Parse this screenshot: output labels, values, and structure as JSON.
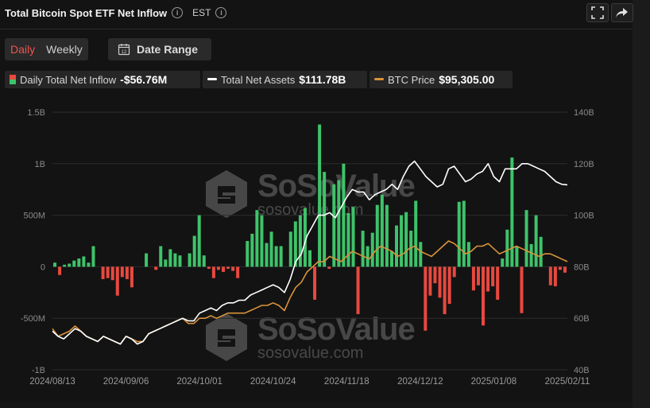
{
  "header": {
    "title": "Total Bitcoin Spot ETF Net Inflow",
    "timezone": "EST"
  },
  "toolbar": {
    "tab_daily": "Daily",
    "tab_weekly": "Weekly",
    "date_range_label": "Date Range",
    "calendar_day": "12"
  },
  "legend": {
    "inflow_label": "Daily Total Net Inflow",
    "inflow_value": "-$56.76M",
    "assets_label": "Total Net Assets",
    "assets_value": "$111.78B",
    "btc_label": "BTC Price",
    "btc_value": "$95,305.00"
  },
  "watermark": {
    "brand": "SoSoValue",
    "url": "sosovalue.com"
  },
  "colors": {
    "positive_bar": "#3ec36a",
    "negative_bar": "#e8493f",
    "net_assets_line": "#ffffff",
    "btc_price_line": "#d9933a",
    "active_tab": "#ef5350"
  },
  "chart_data": {
    "type": "bar",
    "left_axis": {
      "ticks": [
        "1.5B",
        "1B",
        "500M",
        "0",
        "-500M",
        "-1B"
      ],
      "range": [
        -1000,
        1500
      ],
      "unit": "M USD"
    },
    "right_axis": {
      "ticks": [
        "140B",
        "120B",
        "100B",
        "80B",
        "60B",
        "40B"
      ],
      "range": [
        40,
        140
      ],
      "unit": "B USD"
    },
    "x_tick_labels": [
      "2024/08/13",
      "2024/09/06",
      "2024/10/01",
      "2024/10/24",
      "2024/11/18",
      "2024/12/12",
      "2025/01/08",
      "2025/02/11"
    ],
    "series": [
      {
        "name": "Daily Total Net Inflow",
        "kind": "bar",
        "axis": "left",
        "values": [
          40,
          -80,
          20,
          30,
          60,
          80,
          100,
          40,
          200,
          0,
          -120,
          -110,
          -130,
          -280,
          -100,
          -120,
          -200,
          0,
          0,
          130,
          0,
          -30,
          200,
          70,
          170,
          130,
          110,
          0,
          130,
          300,
          500,
          110,
          -20,
          -110,
          -30,
          -50,
          -20,
          -40,
          -110,
          0,
          250,
          320,
          550,
          500,
          230,
          340,
          200,
          200,
          0,
          340,
          440,
          500,
          570,
          160,
          -320,
          1380,
          920,
          -20,
          800,
          840,
          1000,
          520,
          580,
          -460,
          350,
          200,
          330,
          600,
          700,
          600,
          150,
          400,
          500,
          530,
          350,
          640,
          240,
          -620,
          -280,
          -160,
          -300,
          -460,
          -360,
          -100,
          630,
          640,
          240,
          -230,
          -180,
          -570,
          -240,
          -190,
          -320,
          80,
          360,
          1060,
          200,
          -450,
          550,
          220,
          500,
          290,
          0,
          -180,
          -190,
          -30,
          -57
        ]
      },
      {
        "name": "Total Net Assets",
        "kind": "line",
        "axis": "right",
        "values": [
          55,
          53,
          52,
          54,
          56,
          55,
          53,
          52,
          51,
          53,
          52,
          51,
          50,
          53,
          52,
          50,
          51,
          54,
          55,
          56,
          57,
          58,
          59,
          60,
          59,
          59,
          62,
          63,
          64,
          63,
          65,
          66,
          66,
          67,
          67,
          69,
          70,
          71,
          72,
          73,
          72,
          70,
          75,
          82,
          85,
          92,
          96,
          100,
          100,
          101,
          99,
          103,
          107,
          110,
          109,
          109,
          106,
          108,
          109,
          110,
          112,
          110,
          115,
          119,
          121,
          118,
          115,
          113,
          111,
          112,
          118,
          119,
          116,
          113,
          114,
          116,
          117,
          120,
          115,
          113,
          118,
          118,
          118,
          120,
          120,
          119,
          118,
          117,
          115,
          113,
          112,
          111.78
        ]
      },
      {
        "name": "BTC Price",
        "kind": "line",
        "axis": "right",
        "values": [
          56,
          53,
          54,
          55,
          57,
          55,
          53,
          52,
          51,
          53,
          52,
          51,
          50,
          53,
          52,
          51,
          51,
          54,
          55,
          56,
          57,
          58,
          59,
          60,
          58,
          58,
          60,
          60,
          61,
          60,
          61,
          62,
          62,
          62,
          62,
          63,
          64,
          65,
          65,
          66,
          65,
          63,
          68,
          72,
          74,
          78,
          80,
          82,
          82,
          84,
          83,
          82,
          84,
          86,
          85,
          84,
          83,
          86,
          88,
          87,
          86,
          84,
          85,
          87,
          88,
          86,
          85,
          84,
          86,
          88,
          90,
          89,
          87,
          85,
          86,
          88,
          88,
          89,
          87,
          85,
          86,
          87,
          88,
          87,
          86,
          85,
          84,
          85,
          85,
          84,
          83,
          82
        ]
      }
    ]
  }
}
